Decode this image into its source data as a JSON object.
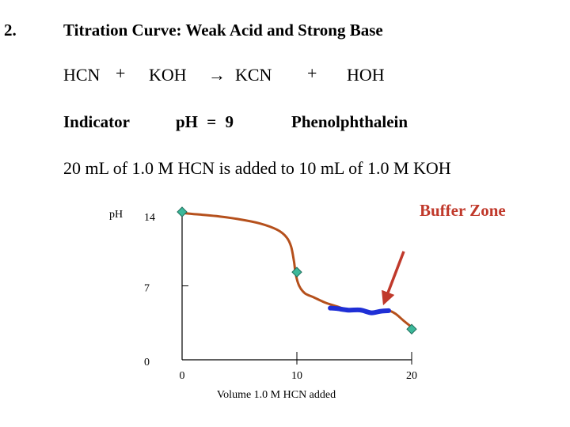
{
  "slide": {
    "number": "2.",
    "title": "Titration Curve: Weak Acid and Strong Base"
  },
  "reaction": {
    "reactant1": "HCN",
    "plus1": "+",
    "reactant2": "KOH",
    "arrow": "→",
    "product1": "KCN",
    "plus2": "+",
    "product2": "HOH"
  },
  "indicator": {
    "label": "Indicator",
    "ph_text": "pH = 9",
    "name": "Phenolphthalein"
  },
  "statement": "20 mL of 1.0 M HCN is added to 10 mL of 1.0 M KOH",
  "chart_data": {
    "type": "line",
    "ylabel": "pH",
    "xlabel": "Volume 1.0 M HCN added",
    "xlim": [
      0,
      20
    ],
    "ylim": [
      0,
      14
    ],
    "x_ticks": [
      {
        "value": 0,
        "label": "0"
      },
      {
        "value": 10,
        "label": "10"
      },
      {
        "value": 20,
        "label": "20"
      }
    ],
    "y_ticks": [
      {
        "value": 0,
        "label": "0"
      },
      {
        "value": 7,
        "label": "7"
      },
      {
        "value": 14,
        "label": "14"
      }
    ],
    "curve": {
      "color": "#b5501c",
      "points": [
        [
          0,
          13.9
        ],
        [
          1,
          13.8
        ],
        [
          3,
          13.6
        ],
        [
          5,
          13.3
        ],
        [
          6.8,
          12.9
        ],
        [
          8.3,
          12.3
        ],
        [
          9.1,
          11.6
        ],
        [
          9.5,
          10.7
        ],
        [
          9.75,
          9.3
        ],
        [
          9.9,
          8.1
        ],
        [
          10.2,
          7.0
        ],
        [
          10.7,
          6.3
        ],
        [
          11.5,
          5.9
        ],
        [
          12.5,
          5.4
        ],
        [
          13.5,
          5.05
        ],
        [
          14.5,
          4.7
        ],
        [
          15.5,
          4.7
        ],
        [
          16.5,
          4.45
        ],
        [
          17.3,
          4.6
        ],
        [
          18,
          4.65
        ],
        [
          18.6,
          4.35
        ],
        [
          19.3,
          3.7
        ],
        [
          20,
          3.1
        ]
      ]
    },
    "buffer_segment": {
      "color": "#1f2fd6",
      "points": [
        [
          12.9,
          4.9
        ],
        [
          13.5,
          4.85
        ],
        [
          14.5,
          4.7
        ],
        [
          15.5,
          4.72
        ],
        [
          16.5,
          4.45
        ],
        [
          17.3,
          4.6
        ],
        [
          18,
          4.65
        ]
      ]
    },
    "markers": {
      "color": "#3cb89a",
      "points": [
        [
          0,
          14
        ],
        [
          10,
          8.3
        ],
        [
          20,
          2.9
        ]
      ]
    },
    "annotation": {
      "text": "Buffer Zone",
      "color": "#c0392b",
      "arrow_target": [
        17.6,
        5.4
      ]
    }
  }
}
